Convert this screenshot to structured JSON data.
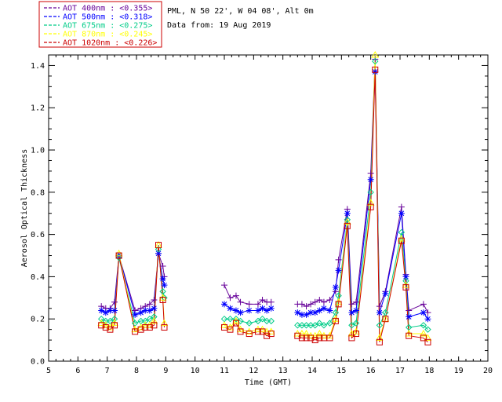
{
  "legend": [
    {
      "text": "AOT  400nm : <0.355>",
      "color": "#660099"
    },
    {
      "text": "AOT  500nm : <0.318>",
      "color": "#0000ff"
    },
    {
      "text": "AOT  675nm : <0.275>",
      "color": "#00cc88"
    },
    {
      "text": "AOT  870nm : <0.245>",
      "color": "#ffff00"
    },
    {
      "text": "AOT 1020nm : <0.226>",
      "color": "#cc0000"
    }
  ],
  "header": {
    "site": "PML, N 50 22', W 04 08', Alt 0m",
    "date": "Data from: 19 Aug 2019"
  },
  "chart_data": {
    "type": "line",
    "xlabel": "Time (GMT)",
    "ylabel": "Aerosol Optical Thickness",
    "xlim": [
      5,
      20
    ],
    "ylim": [
      0.0,
      1.45
    ],
    "xticks": [
      "5",
      "6",
      "7",
      "8",
      "9",
      "10",
      "11",
      "12",
      "13",
      "14",
      "15",
      "16",
      "17",
      "18",
      "19",
      "20"
    ],
    "yticks": [
      "0.0",
      "0.2",
      "0.4",
      "0.6",
      "0.8",
      "1.0",
      "1.2",
      "1.4"
    ],
    "grid": false,
    "series": [
      {
        "name": "AOT  400nm : <0.355>",
        "color": "#660099",
        "marker": "plus",
        "points": [
          [
            6.8,
            0.26
          ],
          [
            6.95,
            0.25
          ],
          [
            7.1,
            0.25
          ],
          [
            7.25,
            0.28
          ],
          [
            7.4,
            0.5
          ],
          [
            7.95,
            0.24
          ],
          [
            8.15,
            0.25
          ],
          [
            8.3,
            0.26
          ],
          [
            8.45,
            0.27
          ],
          [
            8.6,
            0.29
          ],
          [
            8.75,
            0.51
          ],
          [
            8.9,
            0.45
          ],
          [
            8.95,
            0.4
          ],
          [
            11.0,
            0.36
          ],
          [
            11.2,
            0.3
          ],
          [
            11.4,
            0.31
          ],
          [
            11.55,
            0.28
          ],
          [
            11.85,
            0.27
          ],
          [
            12.15,
            0.27
          ],
          [
            12.3,
            0.29
          ],
          [
            12.45,
            0.28
          ],
          [
            12.6,
            0.28
          ],
          [
            13.5,
            0.27
          ],
          [
            13.65,
            0.27
          ],
          [
            13.8,
            0.26
          ],
          [
            13.95,
            0.27
          ],
          [
            14.1,
            0.28
          ],
          [
            14.25,
            0.29
          ],
          [
            14.4,
            0.28
          ],
          [
            14.6,
            0.29
          ],
          [
            14.8,
            0.33
          ],
          [
            14.9,
            0.48
          ],
          [
            15.2,
            0.72
          ],
          [
            15.35,
            0.27
          ],
          [
            15.5,
            0.28
          ],
          [
            16.0,
            0.89
          ],
          [
            16.15,
            1.43
          ],
          [
            16.3,
            0.26
          ],
          [
            16.5,
            0.33
          ],
          [
            17.05,
            0.73
          ],
          [
            17.2,
            0.41
          ],
          [
            17.3,
            0.24
          ],
          [
            17.8,
            0.27
          ],
          [
            17.95,
            0.23
          ]
        ]
      },
      {
        "name": "AOT  500nm : <0.318>",
        "color": "#0000ff",
        "marker": "asterisk",
        "points": [
          [
            6.8,
            0.24
          ],
          [
            6.95,
            0.23
          ],
          [
            7.1,
            0.24
          ],
          [
            7.25,
            0.24
          ],
          [
            7.4,
            0.5
          ],
          [
            7.95,
            0.22
          ],
          [
            8.15,
            0.23
          ],
          [
            8.3,
            0.24
          ],
          [
            8.45,
            0.24
          ],
          [
            8.6,
            0.25
          ],
          [
            8.75,
            0.51
          ],
          [
            8.9,
            0.39
          ],
          [
            8.95,
            0.36
          ],
          [
            11.0,
            0.27
          ],
          [
            11.2,
            0.25
          ],
          [
            11.4,
            0.24
          ],
          [
            11.55,
            0.23
          ],
          [
            11.85,
            0.24
          ],
          [
            12.15,
            0.24
          ],
          [
            12.3,
            0.25
          ],
          [
            12.45,
            0.24
          ],
          [
            12.6,
            0.25
          ],
          [
            13.5,
            0.23
          ],
          [
            13.65,
            0.22
          ],
          [
            13.8,
            0.22
          ],
          [
            13.95,
            0.23
          ],
          [
            14.1,
            0.23
          ],
          [
            14.25,
            0.24
          ],
          [
            14.4,
            0.25
          ],
          [
            14.6,
            0.24
          ],
          [
            14.8,
            0.35
          ],
          [
            14.9,
            0.43
          ],
          [
            15.2,
            0.7
          ],
          [
            15.35,
            0.23
          ],
          [
            15.5,
            0.24
          ],
          [
            16.0,
            0.86
          ],
          [
            16.15,
            1.37
          ],
          [
            16.3,
            0.23
          ],
          [
            16.5,
            0.32
          ],
          [
            17.05,
            0.7
          ],
          [
            17.2,
            0.4
          ],
          [
            17.3,
            0.21
          ],
          [
            17.8,
            0.23
          ],
          [
            17.95,
            0.2
          ]
        ]
      },
      {
        "name": "AOT  675nm : <0.275>",
        "color": "#00cc88",
        "marker": "diamond",
        "points": [
          [
            6.8,
            0.2
          ],
          [
            6.95,
            0.19
          ],
          [
            7.1,
            0.19
          ],
          [
            7.25,
            0.2
          ],
          [
            7.4,
            0.49
          ],
          [
            7.95,
            0.18
          ],
          [
            8.15,
            0.19
          ],
          [
            8.3,
            0.19
          ],
          [
            8.45,
            0.2
          ],
          [
            8.6,
            0.21
          ],
          [
            8.75,
            0.53
          ],
          [
            8.9,
            0.33
          ],
          [
            8.95,
            0.3
          ],
          [
            11.0,
            0.2
          ],
          [
            11.2,
            0.2
          ],
          [
            11.4,
            0.2
          ],
          [
            11.55,
            0.19
          ],
          [
            11.85,
            0.18
          ],
          [
            12.15,
            0.19
          ],
          [
            12.3,
            0.2
          ],
          [
            12.45,
            0.19
          ],
          [
            12.6,
            0.19
          ],
          [
            13.5,
            0.17
          ],
          [
            13.65,
            0.17
          ],
          [
            13.8,
            0.17
          ],
          [
            13.95,
            0.17
          ],
          [
            14.1,
            0.17
          ],
          [
            14.25,
            0.18
          ],
          [
            14.4,
            0.17
          ],
          [
            14.6,
            0.18
          ],
          [
            14.8,
            0.23
          ],
          [
            14.9,
            0.31
          ],
          [
            15.2,
            0.67
          ],
          [
            15.35,
            0.17
          ],
          [
            15.5,
            0.18
          ],
          [
            16.0,
            0.8
          ],
          [
            16.15,
            1.42
          ],
          [
            16.3,
            0.17
          ],
          [
            16.5,
            0.23
          ],
          [
            17.05,
            0.61
          ],
          [
            17.2,
            0.38
          ],
          [
            17.3,
            0.16
          ],
          [
            17.8,
            0.17
          ],
          [
            17.95,
            0.15
          ]
        ]
      },
      {
        "name": "AOT  870nm : <0.245>",
        "color": "#ffff00",
        "marker": "triangle",
        "points": [
          [
            6.8,
            0.18
          ],
          [
            6.95,
            0.17
          ],
          [
            7.1,
            0.16
          ],
          [
            7.25,
            0.18
          ],
          [
            7.4,
            0.51
          ],
          [
            7.95,
            0.15
          ],
          [
            8.15,
            0.16
          ],
          [
            8.3,
            0.17
          ],
          [
            8.45,
            0.17
          ],
          [
            8.6,
            0.19
          ],
          [
            8.75,
            0.55
          ],
          [
            8.9,
            0.3
          ],
          [
            8.95,
            0.18
          ],
          [
            11.0,
            0.17
          ],
          [
            11.2,
            0.16
          ],
          [
            11.4,
            0.19
          ],
          [
            11.55,
            0.15
          ],
          [
            11.85,
            0.14
          ],
          [
            12.15,
            0.15
          ],
          [
            12.3,
            0.15
          ],
          [
            12.45,
            0.14
          ],
          [
            12.6,
            0.14
          ],
          [
            13.5,
            0.13
          ],
          [
            13.65,
            0.13
          ],
          [
            13.8,
            0.13
          ],
          [
            13.95,
            0.12
          ],
          [
            14.1,
            0.12
          ],
          [
            14.25,
            0.13
          ],
          [
            14.4,
            0.12
          ],
          [
            14.6,
            0.12
          ],
          [
            14.8,
            0.2
          ],
          [
            14.9,
            0.28
          ],
          [
            15.2,
            0.66
          ],
          [
            15.35,
            0.13
          ],
          [
            15.5,
            0.14
          ],
          [
            16.0,
            0.75
          ],
          [
            16.15,
            1.45
          ],
          [
            16.3,
            0.11
          ],
          [
            16.5,
            0.2
          ],
          [
            17.05,
            0.58
          ],
          [
            17.2,
            0.36
          ],
          [
            17.3,
            0.13
          ],
          [
            17.8,
            0.13
          ],
          [
            17.95,
            0.11
          ]
        ]
      },
      {
        "name": "AOT 1020nm : <0.226>",
        "color": "#cc0000",
        "marker": "square",
        "points": [
          [
            6.8,
            0.17
          ],
          [
            6.95,
            0.16
          ],
          [
            7.1,
            0.15
          ],
          [
            7.25,
            0.17
          ],
          [
            7.4,
            0.5
          ],
          [
            7.95,
            0.14
          ],
          [
            8.15,
            0.15
          ],
          [
            8.3,
            0.16
          ],
          [
            8.45,
            0.16
          ],
          [
            8.6,
            0.17
          ],
          [
            8.75,
            0.55
          ],
          [
            8.9,
            0.29
          ],
          [
            8.95,
            0.16
          ],
          [
            11.0,
            0.16
          ],
          [
            11.2,
            0.15
          ],
          [
            11.4,
            0.18
          ],
          [
            11.55,
            0.14
          ],
          [
            11.85,
            0.13
          ],
          [
            12.15,
            0.14
          ],
          [
            12.3,
            0.14
          ],
          [
            12.45,
            0.12
          ],
          [
            12.6,
            0.13
          ],
          [
            13.5,
            0.12
          ],
          [
            13.65,
            0.11
          ],
          [
            13.8,
            0.11
          ],
          [
            13.95,
            0.11
          ],
          [
            14.1,
            0.1
          ],
          [
            14.25,
            0.11
          ],
          [
            14.4,
            0.11
          ],
          [
            14.6,
            0.11
          ],
          [
            14.8,
            0.19
          ],
          [
            14.9,
            0.27
          ],
          [
            15.2,
            0.64
          ],
          [
            15.35,
            0.11
          ],
          [
            15.5,
            0.13
          ],
          [
            16.0,
            0.73
          ],
          [
            16.15,
            1.38
          ],
          [
            16.3,
            0.09
          ],
          [
            16.5,
            0.2
          ],
          [
            17.05,
            0.57
          ],
          [
            17.2,
            0.35
          ],
          [
            17.3,
            0.12
          ],
          [
            17.8,
            0.11
          ],
          [
            17.95,
            0.09
          ]
        ]
      }
    ]
  }
}
